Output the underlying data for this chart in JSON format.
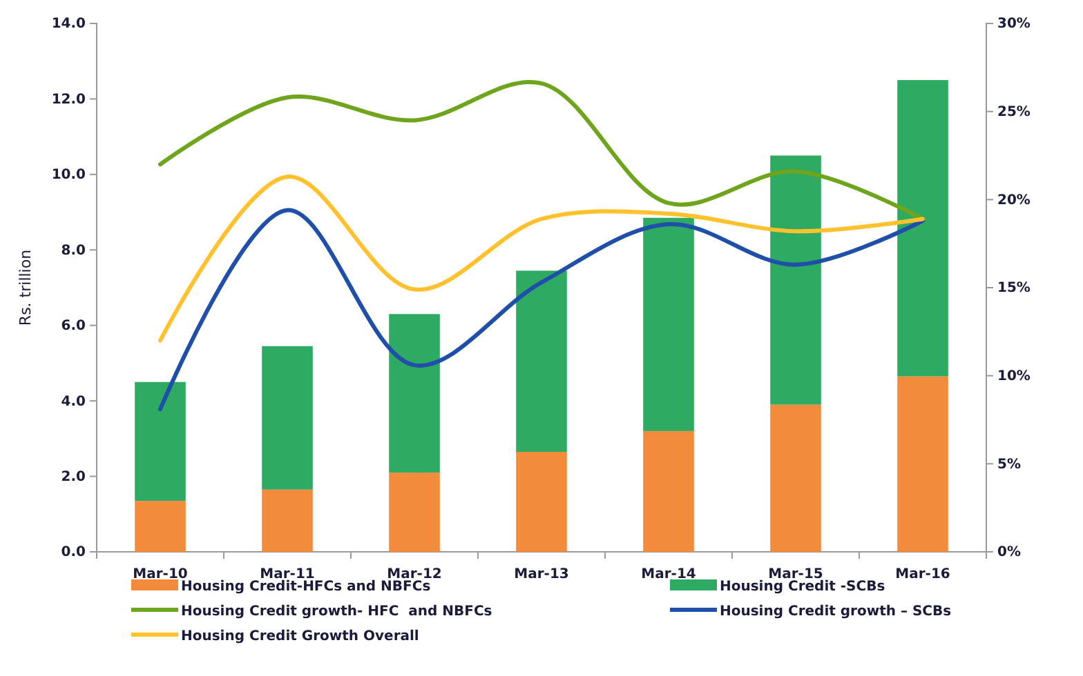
{
  "chart_data": {
    "type": "bar",
    "stacked": true,
    "ylabel": "Rs. trillion",
    "categories": [
      "Mar-10",
      "Mar-11",
      "Mar-12",
      "Mar-13",
      "Mar-14",
      "Mar-15",
      "Mar-16"
    ],
    "series": [
      {
        "name": "Housing Credit-HFCs and NBFCs",
        "color": "#f28c3c",
        "values": [
          1.35,
          1.65,
          2.1,
          2.65,
          3.2,
          3.9,
          4.65
        ]
      },
      {
        "name": "Housing Credit -SCBs",
        "color": "#2eaa62",
        "values": [
          3.15,
          3.8,
          4.2,
          4.8,
          5.65,
          6.6,
          7.85
        ]
      },
      {
        "name": "Housing Credit growth- HFC  and NBFCs",
        "type": "line",
        "axis": "y2",
        "color": "#6fa51c",
        "values": [
          22.0,
          25.8,
          24.5,
          26.6,
          19.8,
          21.6,
          18.9
        ]
      },
      {
        "name": "Housing Credit growth – SCBs",
        "type": "line",
        "axis": "y2",
        "color": "#1f4fa8",
        "values": [
          8.1,
          19.4,
          10.6,
          15.3,
          18.6,
          16.3,
          18.8
        ]
      },
      {
        "name": "Housing Credit Growth Overall",
        "type": "line",
        "axis": "y2",
        "color": "#ffc12e",
        "values": [
          12.0,
          21.3,
          14.9,
          18.9,
          19.2,
          18.2,
          18.9
        ]
      }
    ],
    "ylim": [
      0,
      14
    ],
    "yticks": [
      {
        "value": 0,
        "label": "0.0"
      },
      {
        "value": 2,
        "label": "2.0"
      },
      {
        "value": 4,
        "label": "4.0"
      },
      {
        "value": 6,
        "label": "6.0"
      },
      {
        "value": 8,
        "label": "8.0"
      },
      {
        "value": 10,
        "label": "10.0"
      },
      {
        "value": 12,
        "label": "12.0"
      },
      {
        "value": 14,
        "label": "14.0"
      }
    ],
    "y2lim": [
      0,
      30
    ],
    "y2ticks": [
      {
        "value": 0,
        "label": "0%"
      },
      {
        "value": 5,
        "label": "5%"
      },
      {
        "value": 10,
        "label": "10%"
      },
      {
        "value": 15,
        "label": "15%"
      },
      {
        "value": 20,
        "label": "20%"
      },
      {
        "value": 25,
        "label": "25%"
      },
      {
        "value": 30,
        "label": "30%"
      }
    ],
    "grid": false,
    "legend": "bottom",
    "line_style": "solid",
    "marker": "none"
  }
}
